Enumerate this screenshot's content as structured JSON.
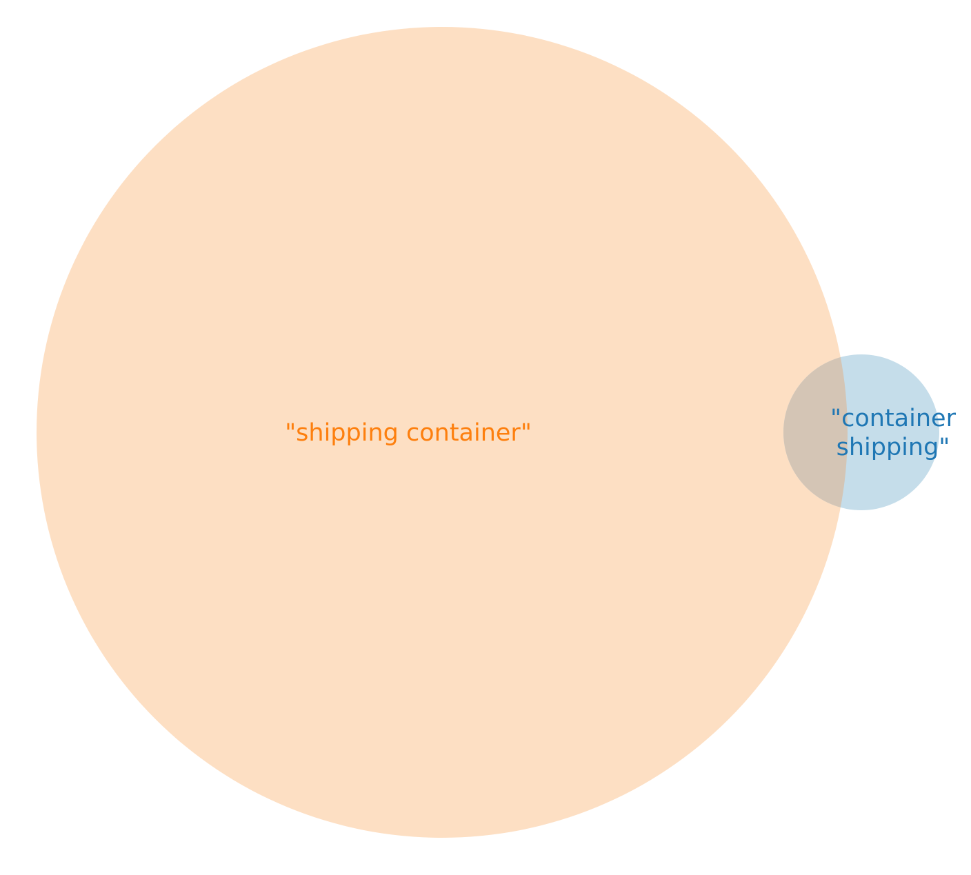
{
  "chart_data": {
    "type": "venn",
    "sets": [
      {
        "id": "shipping-container",
        "label": "\"shipping container\"",
        "color": "#fd7f0e",
        "fill": "#fddfc3"
      },
      {
        "id": "container-shipping",
        "label_lines": [
          "\"container",
          "shipping\""
        ],
        "color": "#1f77b4",
        "fill": "#c5ddea"
      }
    ],
    "overlap_fill": "#d4c5b5"
  }
}
